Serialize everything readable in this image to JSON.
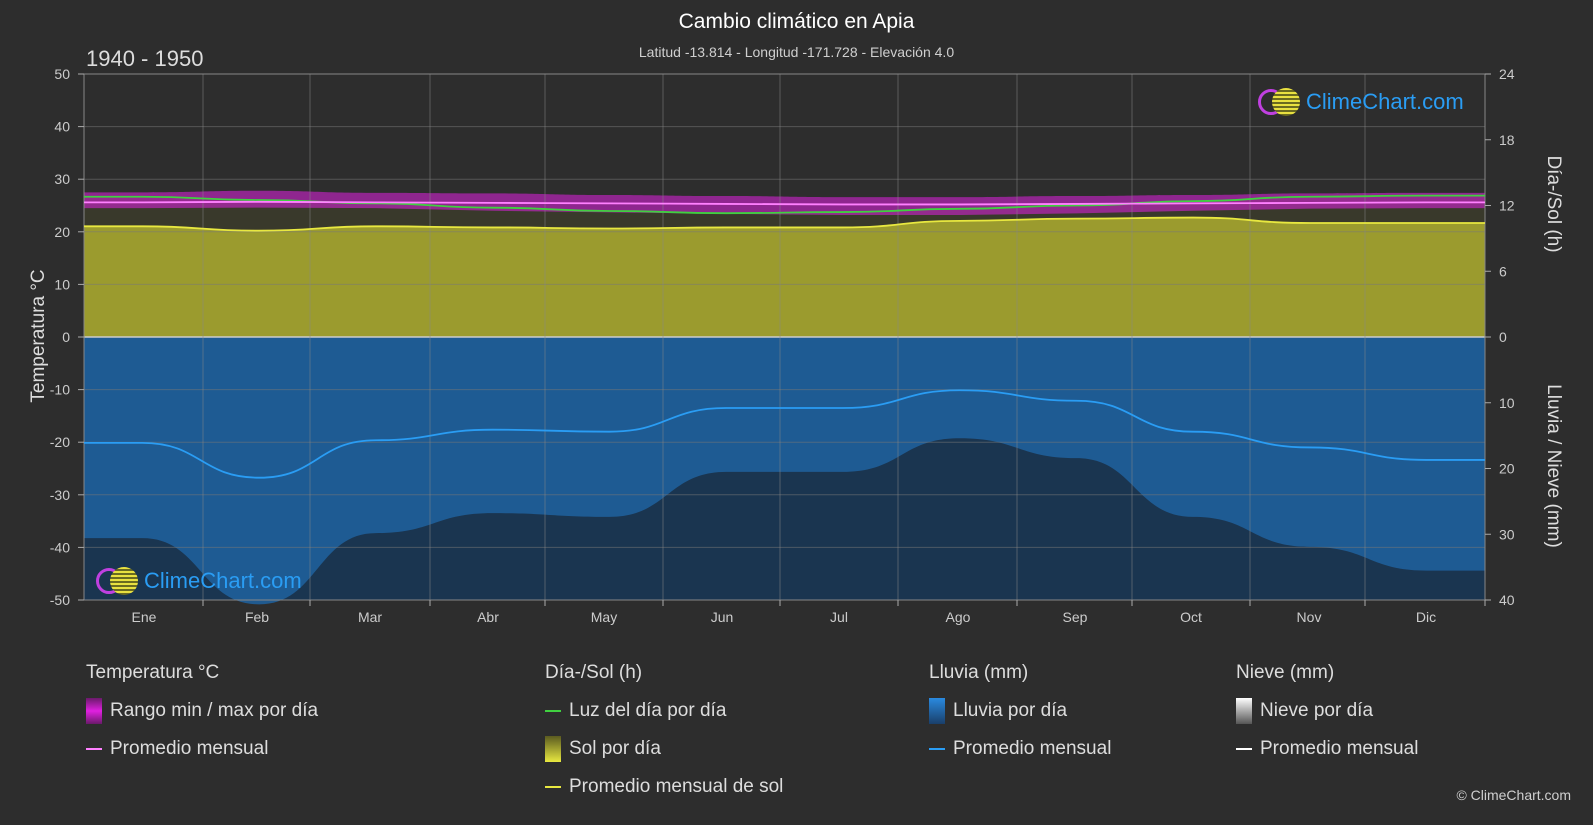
{
  "header": {
    "title": "Cambio climático en Apia",
    "subtitle": "Latitud -13.814 - Longitud -171.728 - Elevación 4.0",
    "period": "1940 - 1950",
    "copyright": "© ClimeChart.com",
    "logo_text": "ClimeChart.com"
  },
  "legend": {
    "temperature": {
      "head": "Temperatura °C",
      "items": [
        "Rango min / max por día",
        "Promedio mensual"
      ]
    },
    "sun": {
      "head": "Día-/Sol (h)",
      "items": [
        "Luz del día por día",
        "Sol por día",
        "Promedio mensual de sol"
      ]
    },
    "rain": {
      "head": "Lluvia (mm)",
      "items": [
        "Lluvia por día",
        "Promedio mensual"
      ]
    },
    "snow": {
      "head": "Nieve (mm)",
      "items": [
        "Nieve por día",
        "Promedio mensual"
      ]
    }
  },
  "colors": {
    "background": "#2d2d2d",
    "temperature_range": "#e020e0",
    "temperature_avg": "#ff80ff",
    "daylight": "#40d040",
    "sunshine_fill": "#a8a830",
    "sunshine_avg": "#e8e840",
    "rain_fill": "#1f5f9a",
    "rain_avg": "#2a9df4",
    "snow_avg": "#ffffff"
  },
  "chart_data": {
    "type": "line",
    "categories": [
      "Ene",
      "Feb",
      "Mar",
      "Abr",
      "May",
      "Jun",
      "Jul",
      "Ago",
      "Sep",
      "Oct",
      "Nov",
      "Dic"
    ],
    "yleft": {
      "label": "Temperatura °C",
      "ticks": [
        50,
        40,
        30,
        20,
        10,
        0,
        -10,
        -20,
        -30,
        -40,
        -50
      ],
      "lim": [
        -50,
        50
      ]
    },
    "yright_top": {
      "label": "Día-/Sol (h)",
      "ticks": [
        24,
        18,
        12,
        6,
        0
      ],
      "lim": [
        0,
        24
      ]
    },
    "yright_bottom": {
      "label": "Lluvia / Nieve (mm)",
      "ticks": [
        0,
        10,
        20,
        30,
        40
      ],
      "lim": [
        0,
        40
      ]
    },
    "series": [
      {
        "name": "Promedio mensual",
        "axis": "temperature",
        "values": [
          25.6,
          25.7,
          25.6,
          25.5,
          25.4,
          25.3,
          25.2,
          25.2,
          25.3,
          25.4,
          25.5,
          25.6
        ]
      },
      {
        "name": "Luz del día por día",
        "axis": "daylight_h",
        "values": [
          12.8,
          12.5,
          12.2,
          11.8,
          11.5,
          11.3,
          11.4,
          11.7,
          12.0,
          12.4,
          12.8,
          12.9
        ]
      },
      {
        "name": "Promedio mensual de sol",
        "axis": "daylight_h",
        "values": [
          10.1,
          9.7,
          10.1,
          10.0,
          9.9,
          10.0,
          10.0,
          10.6,
          10.8,
          10.9,
          10.4,
          10.4
        ]
      },
      {
        "name": "Promedio mensual",
        "axis": "rain_mm",
        "values": [
          16.1,
          21.4,
          15.7,
          14.1,
          14.4,
          10.8,
          10.8,
          8.1,
          9.7,
          14.4,
          16.8,
          18.7
        ]
      },
      {
        "name": "Promedio mensual",
        "axis": "snow_mm",
        "values": [
          0,
          0,
          0,
          0,
          0,
          0,
          0,
          0,
          0,
          0,
          0,
          0
        ]
      }
    ],
    "temperature_range": {
      "min": [
        24.5,
        24.6,
        24.5,
        24.0,
        23.7,
        23.4,
        23.2,
        23.2,
        23.5,
        24.0,
        24.4,
        24.5
      ],
      "max": [
        27.5,
        27.8,
        27.4,
        27.3,
        27.0,
        26.8,
        26.6,
        26.6,
        26.8,
        27.0,
        27.3,
        27.4
      ]
    },
    "grid": true
  }
}
